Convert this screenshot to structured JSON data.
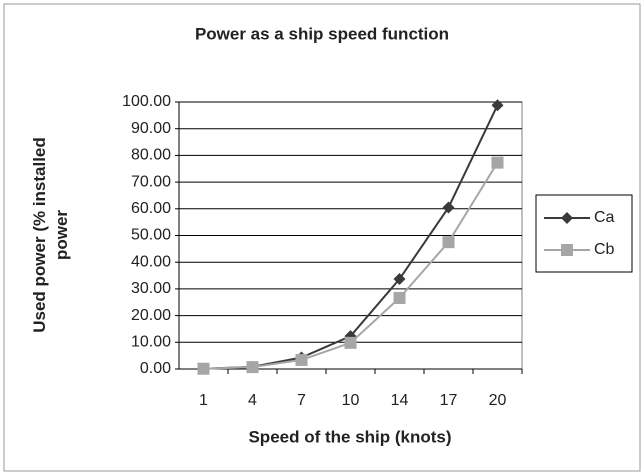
{
  "chart_data": {
    "type": "line",
    "title": "Power as a ship speed function",
    "xlabel": "Speed of the ship (knots)",
    "ylabel": "Used power (% installed power",
    "categories": [
      "1",
      "4",
      "7",
      "10",
      "14",
      "17",
      "20"
    ],
    "series": [
      {
        "name": "Ca",
        "color": "#3a3a3a",
        "marker": "diamond",
        "values": [
          0.1,
          0.8,
          4.3,
          12.3,
          33.7,
          60.5,
          98.8
        ]
      },
      {
        "name": "Cb",
        "color": "#a6a6a6",
        "marker": "square",
        "values": [
          0.1,
          0.7,
          3.4,
          9.8,
          26.6,
          47.5,
          77.3
        ]
      }
    ],
    "ylim": [
      0,
      100
    ],
    "yticks": [
      {
        "value": 0,
        "label": "0.00"
      },
      {
        "value": 10,
        "label": "10.00"
      },
      {
        "value": 20,
        "label": "20.00"
      },
      {
        "value": 30,
        "label": "30.00"
      },
      {
        "value": 40,
        "label": "40.00"
      },
      {
        "value": 50,
        "label": "50.00"
      },
      {
        "value": 60,
        "label": "60.00"
      },
      {
        "value": 70,
        "label": "70.00"
      },
      {
        "value": 80,
        "label": "80.00"
      },
      {
        "value": 90,
        "label": "90.00"
      },
      {
        "value": 100,
        "label": "100.00"
      }
    ],
    "grid": true,
    "legend": "right"
  }
}
